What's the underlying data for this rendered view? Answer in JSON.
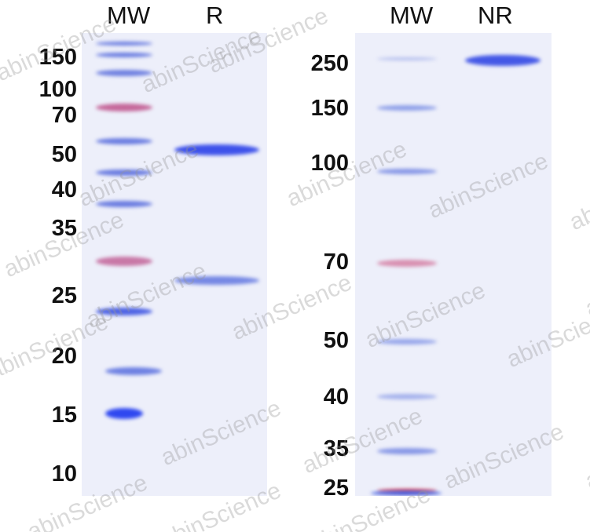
{
  "left_panel": {
    "lane_headers": [
      "MW",
      "R"
    ],
    "mw_labels": [
      "150",
      "100",
      "70",
      "50",
      "40",
      "35",
      "25",
      "20",
      "15",
      "10"
    ]
  },
  "right_panel": {
    "lane_headers": [
      "MW",
      "NR"
    ],
    "mw_labels": [
      "250",
      "150",
      "100",
      "70",
      "50",
      "40",
      "35",
      "25"
    ]
  },
  "watermark": "abinScience",
  "colors": {
    "gel_background": "#edeffa",
    "band_blue": "#4f5fe0",
    "marker_pink": "#c86a9a"
  }
}
